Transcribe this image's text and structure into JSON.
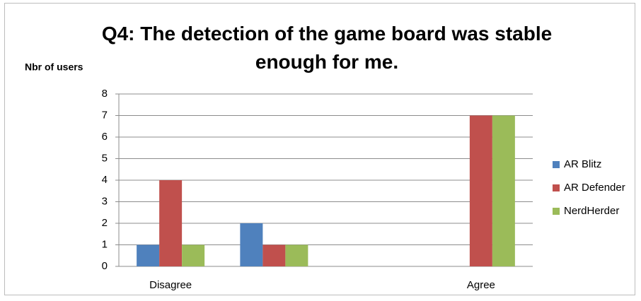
{
  "chart_data": {
    "type": "bar",
    "title": "Q4: The detection of the game board was stable enough for me.",
    "y_label": "Nbr of users",
    "categories": [
      "Disagree",
      null,
      null,
      "Agree"
    ],
    "series": [
      {
        "name": "AR Blitz",
        "color": "#4f81bd",
        "values": [
          1,
          2,
          0,
          0
        ]
      },
      {
        "name": "AR Defender",
        "color": "#c0504d",
        "values": [
          4,
          1,
          0,
          7
        ]
      },
      {
        "name": "NerdHerder",
        "color": "#9bbb59",
        "values": [
          1,
          1,
          0,
          7
        ]
      }
    ],
    "ylim": [
      0,
      8
    ],
    "yticks": [
      0,
      1,
      2,
      3,
      4,
      5,
      6,
      7,
      8
    ],
    "grid": true,
    "legend": "right"
  }
}
